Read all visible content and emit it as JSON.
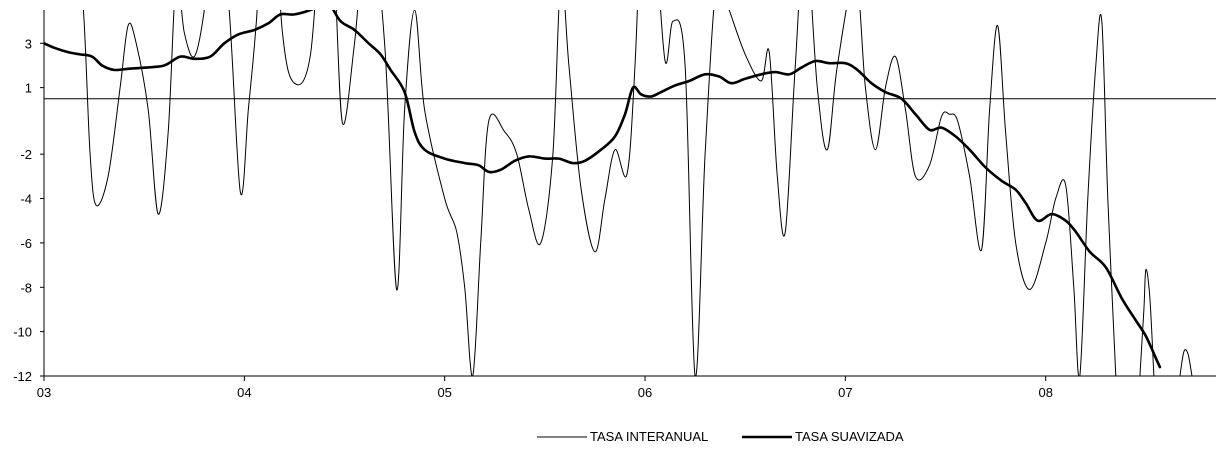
{
  "chart_data": {
    "type": "line",
    "x_label": "",
    "y_label": "",
    "x_range": [
      3.0,
      8.85
    ],
    "y_range": [
      -12,
      4.5
    ],
    "x_ticks": [
      {
        "value": 3,
        "label": "03"
      },
      {
        "value": 4,
        "label": "04"
      },
      {
        "value": 5,
        "label": "05"
      },
      {
        "value": 6,
        "label": "06"
      },
      {
        "value": 7,
        "label": "07"
      },
      {
        "value": 8,
        "label": "08"
      }
    ],
    "y_ticks": [
      {
        "value": 3,
        "label": "3"
      },
      {
        "value": 1,
        "label": "1"
      },
      {
        "value": -2,
        "label": "-2"
      },
      {
        "value": -4,
        "label": "-4"
      },
      {
        "value": -6,
        "label": "-6"
      },
      {
        "value": -8,
        "label": "-8"
      },
      {
        "value": -10,
        "label": "-10"
      },
      {
        "value": -12,
        "label": "-12"
      }
    ],
    "reference_line": {
      "y": 0.5
    },
    "legend_position": "bottom",
    "series": [
      {
        "name": "TASA INTERANUAL",
        "color": "#000000",
        "style": "thin",
        "points": [
          [
            3.15,
            11
          ],
          [
            3.2,
            4
          ],
          [
            3.23,
            -2
          ],
          [
            3.26,
            -4.3
          ],
          [
            3.32,
            -3
          ],
          [
            3.38,
            1
          ],
          [
            3.42,
            3.8
          ],
          [
            3.46,
            3
          ],
          [
            3.52,
            0
          ],
          [
            3.57,
            -4.7
          ],
          [
            3.62,
            -1
          ],
          [
            3.66,
            6
          ],
          [
            3.7,
            3.5
          ],
          [
            3.75,
            2.4
          ],
          [
            3.8,
            4.5
          ],
          [
            3.85,
            9
          ],
          [
            3.92,
            5
          ],
          [
            3.98,
            -3.7
          ],
          [
            4.02,
            0
          ],
          [
            4.06,
            4
          ],
          [
            4.12,
            12
          ],
          [
            4.19,
            3.5
          ],
          [
            4.25,
            1.2
          ],
          [
            4.33,
            2.5
          ],
          [
            4.4,
            10
          ],
          [
            4.45,
            6
          ],
          [
            4.49,
            -0.6
          ],
          [
            4.55,
            3
          ],
          [
            4.62,
            9
          ],
          [
            4.7,
            3
          ],
          [
            4.76,
            -8.1
          ],
          [
            4.8,
            0
          ],
          [
            4.85,
            4.5
          ],
          [
            4.9,
            0
          ],
          [
            5.0,
            -4
          ],
          [
            5.06,
            -5.5
          ],
          [
            5.1,
            -8
          ],
          [
            5.14,
            -12
          ],
          [
            5.18,
            -6
          ],
          [
            5.22,
            -0.5
          ],
          [
            5.3,
            -1
          ],
          [
            5.36,
            -2
          ],
          [
            5.42,
            -4.5
          ],
          [
            5.48,
            -6
          ],
          [
            5.54,
            -2
          ],
          [
            5.58,
            6
          ],
          [
            5.62,
            2
          ],
          [
            5.68,
            -3.5
          ],
          [
            5.75,
            -6.4
          ],
          [
            5.8,
            -4
          ],
          [
            5.85,
            -1.8
          ],
          [
            5.91,
            -2.9
          ],
          [
            5.95,
            2
          ],
          [
            6.0,
            12
          ],
          [
            6.05,
            8
          ],
          [
            6.1,
            2.2
          ],
          [
            6.14,
            4
          ],
          [
            6.2,
            2
          ],
          [
            6.25,
            -12
          ],
          [
            6.3,
            -2
          ],
          [
            6.36,
            6
          ],
          [
            6.42,
            4.5
          ],
          [
            6.5,
            2.5
          ],
          [
            6.58,
            1.3
          ],
          [
            6.62,
            2.6
          ],
          [
            6.66,
            -3
          ],
          [
            6.7,
            -5.5
          ],
          [
            6.75,
            2
          ],
          [
            6.8,
            8
          ],
          [
            6.86,
            1
          ],
          [
            6.91,
            -1.8
          ],
          [
            6.96,
            2
          ],
          [
            7.05,
            6
          ],
          [
            7.1,
            1
          ],
          [
            7.15,
            -1.8
          ],
          [
            7.2,
            1
          ],
          [
            7.25,
            2.4
          ],
          [
            7.3,
            0
          ],
          [
            7.35,
            -3
          ],
          [
            7.42,
            -2.5
          ],
          [
            7.48,
            -0.3
          ],
          [
            7.52,
            -0.2
          ],
          [
            7.56,
            -0.5
          ],
          [
            7.62,
            -3
          ],
          [
            7.68,
            -6.3
          ],
          [
            7.72,
            0
          ],
          [
            7.76,
            3.8
          ],
          [
            7.8,
            -1
          ],
          [
            7.85,
            -6
          ],
          [
            7.92,
            -8.1
          ],
          [
            8.0,
            -6
          ],
          [
            8.05,
            -4
          ],
          [
            8.1,
            -3.4
          ],
          [
            8.14,
            -8
          ],
          [
            8.17,
            -12
          ],
          [
            8.21,
            -4
          ],
          [
            8.25,
            2
          ],
          [
            8.28,
            4
          ],
          [
            8.31,
            -4
          ],
          [
            8.35,
            -12
          ]
        ]
      },
      {
        "name": "",
        "color": "#000000",
        "style": "thin",
        "points": [
          [
            8.47,
            -12
          ],
          [
            8.49,
            -9
          ],
          [
            8.5,
            -7.2
          ],
          [
            8.52,
            -8.5
          ],
          [
            8.54,
            -12
          ]
        ]
      },
      {
        "name": "",
        "color": "#000000",
        "style": "thin",
        "points": [
          [
            8.67,
            -12
          ],
          [
            8.69,
            -10.9
          ],
          [
            8.71,
            -11
          ],
          [
            8.73,
            -12
          ]
        ]
      },
      {
        "name": "TASA SUAVIZADA",
        "color": "#000000",
        "style": "thick",
        "points": [
          [
            3.0,
            3.0
          ],
          [
            3.05,
            2.8
          ],
          [
            3.12,
            2.6
          ],
          [
            3.18,
            2.5
          ],
          [
            3.24,
            2.4
          ],
          [
            3.29,
            2.0
          ],
          [
            3.35,
            1.8
          ],
          [
            3.42,
            1.85
          ],
          [
            3.5,
            1.9
          ],
          [
            3.6,
            2.0
          ],
          [
            3.68,
            2.4
          ],
          [
            3.75,
            2.3
          ],
          [
            3.83,
            2.4
          ],
          [
            3.9,
            3.0
          ],
          [
            3.97,
            3.4
          ],
          [
            4.05,
            3.6
          ],
          [
            4.12,
            3.9
          ],
          [
            4.18,
            4.3
          ],
          [
            4.25,
            4.3
          ],
          [
            4.33,
            4.5
          ],
          [
            4.4,
            4.8
          ],
          [
            4.43,
            4.7
          ],
          [
            4.48,
            4.0
          ],
          [
            4.55,
            3.6
          ],
          [
            4.62,
            3.0
          ],
          [
            4.68,
            2.5
          ],
          [
            4.73,
            1.8
          ],
          [
            4.8,
            0.8
          ],
          [
            4.85,
            -1.0
          ],
          [
            4.9,
            -1.8
          ],
          [
            5.0,
            -2.2
          ],
          [
            5.1,
            -2.4
          ],
          [
            5.17,
            -2.5
          ],
          [
            5.22,
            -2.8
          ],
          [
            5.28,
            -2.7
          ],
          [
            5.35,
            -2.3
          ],
          [
            5.42,
            -2.1
          ],
          [
            5.5,
            -2.2
          ],
          [
            5.57,
            -2.2
          ],
          [
            5.64,
            -2.4
          ],
          [
            5.7,
            -2.3
          ],
          [
            5.78,
            -1.8
          ],
          [
            5.85,
            -1.2
          ],
          [
            5.9,
            -0.2
          ],
          [
            5.94,
            1.0
          ],
          [
            5.98,
            0.7
          ],
          [
            6.03,
            0.6
          ],
          [
            6.08,
            0.8
          ],
          [
            6.15,
            1.1
          ],
          [
            6.22,
            1.3
          ],
          [
            6.3,
            1.6
          ],
          [
            6.37,
            1.5
          ],
          [
            6.43,
            1.2
          ],
          [
            6.5,
            1.4
          ],
          [
            6.58,
            1.6
          ],
          [
            6.65,
            1.7
          ],
          [
            6.72,
            1.6
          ],
          [
            6.78,
            1.9
          ],
          [
            6.85,
            2.2
          ],
          [
            6.92,
            2.1
          ],
          [
            7.0,
            2.1
          ],
          [
            7.06,
            1.8
          ],
          [
            7.13,
            1.2
          ],
          [
            7.2,
            0.8
          ],
          [
            7.28,
            0.5
          ],
          [
            7.35,
            -0.2
          ],
          [
            7.42,
            -0.9
          ],
          [
            7.48,
            -0.8
          ],
          [
            7.55,
            -1.2
          ],
          [
            7.62,
            -1.8
          ],
          [
            7.7,
            -2.6
          ],
          [
            7.78,
            -3.2
          ],
          [
            7.85,
            -3.6
          ],
          [
            7.9,
            -4.2
          ],
          [
            7.96,
            -5.0
          ],
          [
            8.03,
            -4.7
          ],
          [
            8.1,
            -5.0
          ],
          [
            8.15,
            -5.5
          ],
          [
            8.22,
            -6.4
          ],
          [
            8.3,
            -7.1
          ],
          [
            8.38,
            -8.5
          ],
          [
            8.45,
            -9.5
          ],
          [
            8.5,
            -10.2
          ],
          [
            8.55,
            -11.2
          ],
          [
            8.57,
            -11.6
          ]
        ]
      }
    ],
    "legend": [
      {
        "label": "TASA INTERANUAL",
        "style": "thin"
      },
      {
        "label": "TASA SUAVIZADA",
        "style": "thick"
      }
    ]
  }
}
